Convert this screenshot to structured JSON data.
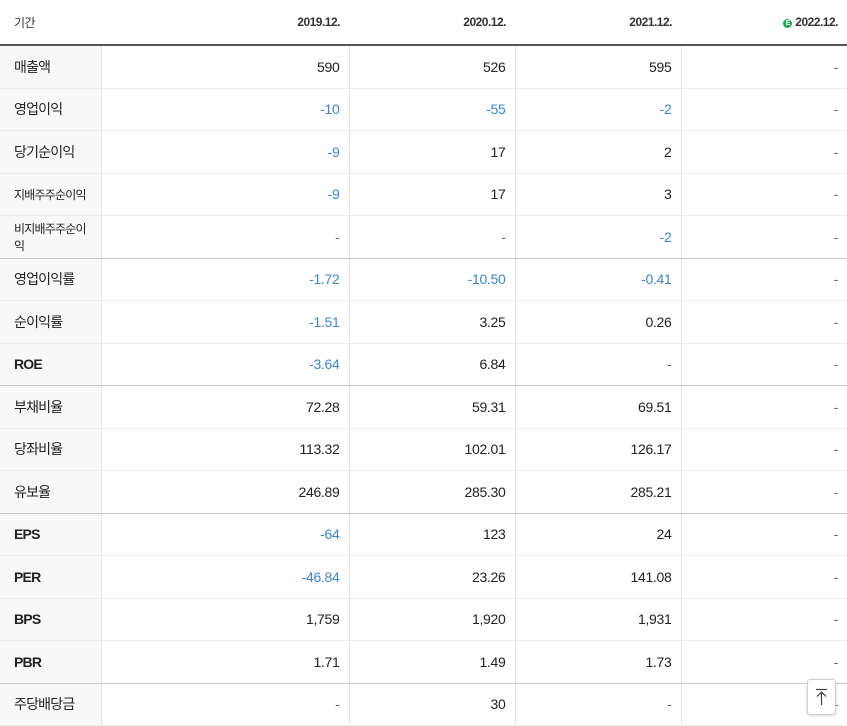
{
  "table": {
    "period_label": "기간",
    "columns": [
      {
        "label": "2019.12.",
        "estimate": false
      },
      {
        "label": "2020.12.",
        "estimate": false
      },
      {
        "label": "2021.12.",
        "estimate": false
      },
      {
        "label": "2022.12.",
        "estimate": true,
        "estimate_mark": "E"
      }
    ],
    "rows": [
      {
        "label": "매출액",
        "values": [
          "590",
          "526",
          "595",
          "-"
        ]
      },
      {
        "label": "영업이익",
        "values": [
          "-10",
          "-55",
          "-2",
          "-"
        ]
      },
      {
        "label": "당기순이익",
        "values": [
          "-9",
          "17",
          "2",
          "-"
        ]
      },
      {
        "label": "지배주주순이익",
        "values": [
          "-9",
          "17",
          "3",
          "-"
        ]
      },
      {
        "label": "비지배주주순이익",
        "values": [
          "-",
          "-",
          "-2",
          "-"
        ]
      },
      {
        "label": "영업이익률",
        "values": [
          "-1.72",
          "-10.50",
          "-0.41",
          "-"
        ]
      },
      {
        "label": "순이익률",
        "values": [
          "-1.51",
          "3.25",
          "0.26",
          "-"
        ]
      },
      {
        "label": "ROE",
        "values": [
          "-3.64",
          "6.84",
          "-",
          "-"
        ]
      },
      {
        "label": "부채비율",
        "values": [
          "72.28",
          "59.31",
          "69.51",
          "-"
        ]
      },
      {
        "label": "당좌비율",
        "values": [
          "113.32",
          "102.01",
          "126.17",
          "-"
        ]
      },
      {
        "label": "유보율",
        "values": [
          "246.89",
          "285.30",
          "285.21",
          "-"
        ]
      },
      {
        "label": "EPS",
        "values": [
          "-64",
          "123",
          "24",
          "-"
        ]
      },
      {
        "label": "PER",
        "values": [
          "-46.84",
          "23.26",
          "141.08",
          "-"
        ]
      },
      {
        "label": "BPS",
        "values": [
          "1,759",
          "1,920",
          "1,931",
          "-"
        ]
      },
      {
        "label": "PBR",
        "values": [
          "1.71",
          "1.49",
          "1.73",
          "-"
        ]
      },
      {
        "label": "주당배당금",
        "values": [
          "-",
          "30",
          "-",
          "-"
        ]
      }
    ]
  },
  "colors": {
    "negative": "#3a86d4",
    "estimate_badge": "#1dab57"
  },
  "scroll_top_icon": "arrow-to-top-icon"
}
